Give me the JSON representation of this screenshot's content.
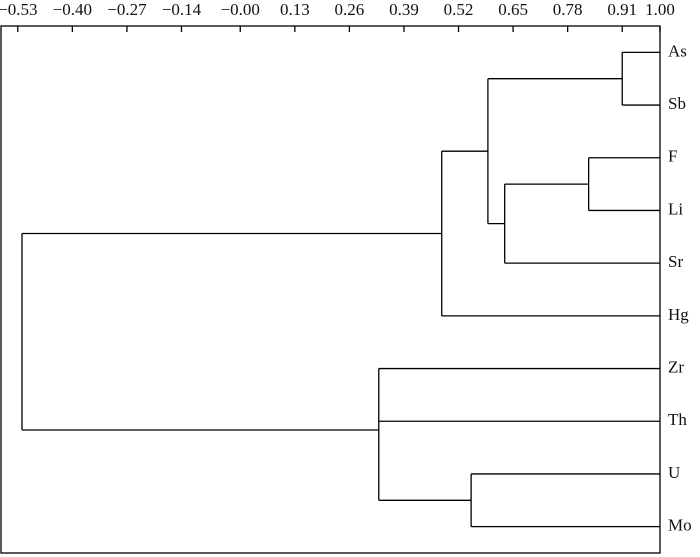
{
  "chart_data": {
    "type": "dendrogram",
    "leaves": [
      "As",
      "Sb",
      "F",
      "Li",
      "Sr",
      "Hg",
      "Zr",
      "Th",
      "U",
      "Mo"
    ],
    "merges": [
      {
        "children": [
          0,
          1
        ],
        "height": 0.91
      },
      {
        "children": [
          2,
          3
        ],
        "height": 0.83
      },
      {
        "children": [
          11,
          4
        ],
        "height": 0.63
      },
      {
        "children": [
          10,
          12
        ],
        "height": 0.59
      },
      {
        "children": [
          8,
          9
        ],
        "height": 0.55
      },
      {
        "children": [
          13,
          5
        ],
        "height": 0.48
      },
      {
        "children": [
          6,
          7,
          14
        ],
        "height": 0.33
      },
      {
        "children": [
          15,
          16
        ],
        "height": -0.52
      }
    ],
    "xlim": [
      -0.57,
      1.0
    ],
    "xticks": [
      {
        "value": -0.53,
        "label": "−0.53"
      },
      {
        "value": -0.4,
        "label": "−0.40"
      },
      {
        "value": -0.27,
        "label": "−0.27"
      },
      {
        "value": -0.14,
        "label": "−0.14"
      },
      {
        "value": 0,
        "label": "−0.00"
      },
      0.13,
      0.26,
      0.39,
      0.52,
      0.65,
      0.78,
      0.91,
      {
        "value": 1,
        "label": "1.00"
      }
    ],
    "color": "#000000"
  }
}
